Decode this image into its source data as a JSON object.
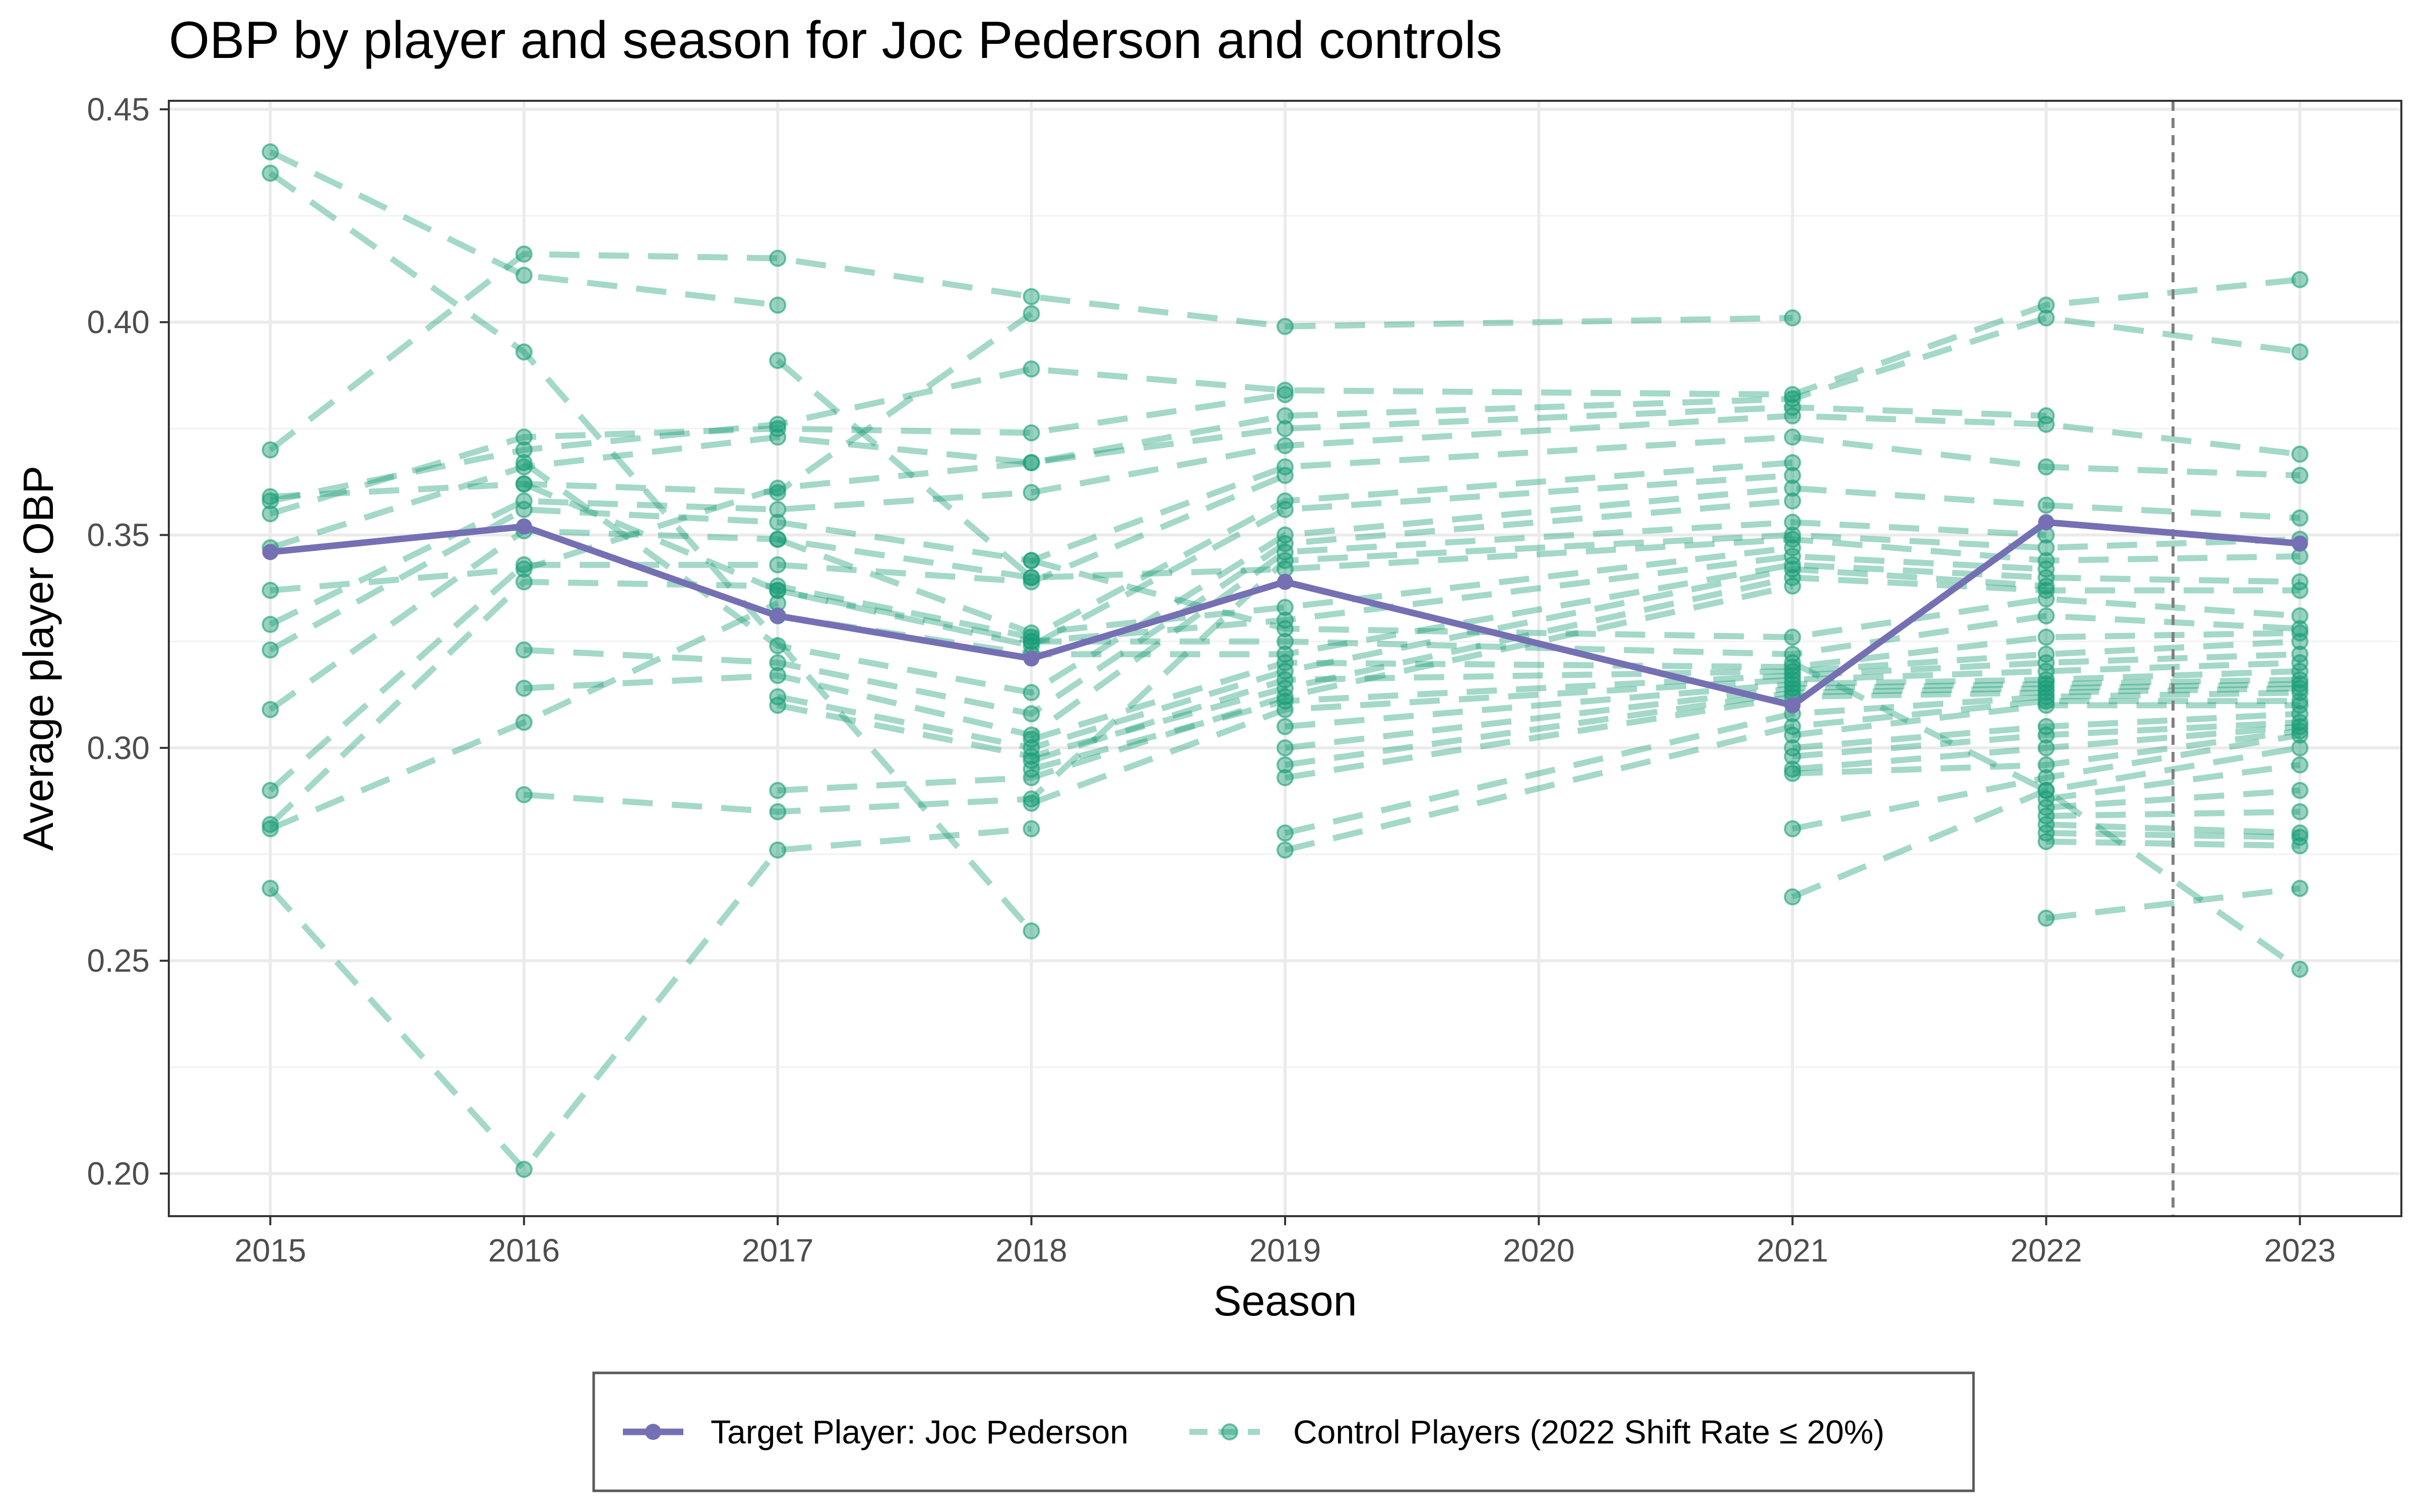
{
  "chart_data": {
    "type": "line",
    "title": "OBP by player and season for Joc Pederson and controls",
    "xlabel": "Season",
    "ylabel": "Average player OBP",
    "xlim": [
      2014.6,
      2023.4
    ],
    "ylim": [
      0.19,
      0.452
    ],
    "x_ticks": [
      "2015",
      "2016",
      "2017",
      "2018",
      "2019",
      "2020",
      "2021",
      "2022",
      "2023"
    ],
    "y_ticks": [
      "0.20",
      "0.25",
      "0.30",
      "0.35",
      "0.40",
      "0.45"
    ],
    "grid": true,
    "reference_line_x": 2022.5,
    "legend_position": "bottom",
    "colors": {
      "target": "#7570b3",
      "control": "#1b9e77",
      "reference": "#7f7f7f"
    },
    "target_series": {
      "name": "Target Player: Joc Pederson",
      "x": [
        2015,
        2016,
        2017,
        2018,
        2019,
        2021,
        2022,
        2023
      ],
      "y": [
        0.346,
        0.352,
        0.331,
        0.321,
        0.339,
        0.31,
        0.353,
        0.348
      ]
    },
    "control_legend": "Control Players (2022 Shift Rate ≤ 20%)",
    "control_series": [
      {
        "x": [
          2015,
          2016,
          2017
        ],
        "y": [
          0.44,
          0.411,
          0.404
        ]
      },
      {
        "x": [
          2015,
          2016,
          2018
        ],
        "y": [
          0.435,
          0.393,
          0.257
        ]
      },
      {
        "x": [
          2015,
          2016,
          2017,
          2018,
          2019,
          2021
        ],
        "y": [
          0.37,
          0.416,
          0.415,
          0.406,
          0.399,
          0.401
        ]
      },
      {
        "x": [
          2015,
          2016,
          2017,
          2018
        ],
        "y": [
          0.359,
          0.362,
          0.36,
          0.402
        ]
      },
      {
        "x": [
          2015,
          2016,
          2017,
          2018,
          2019,
          2021,
          2022,
          2023
        ],
        "y": [
          0.358,
          0.37,
          0.376,
          0.389,
          0.384,
          0.383,
          0.404,
          0.41
        ]
      },
      {
        "x": [
          2015,
          2016,
          2017,
          2018,
          2019
        ],
        "y": [
          0.355,
          0.373,
          0.375,
          0.374,
          0.383
        ]
      },
      {
        "x": [
          2015,
          2016,
          2017,
          2018,
          2019,
          2021,
          2022,
          2023
        ],
        "y": [
          0.347,
          0.366,
          0.373,
          0.367,
          0.378,
          0.382,
          0.401,
          0.393
        ]
      },
      {
        "x": [
          2015,
          2016,
          2017,
          2018,
          2019,
          2021,
          2022
        ],
        "y": [
          0.337,
          0.342,
          0.361,
          0.367,
          0.375,
          0.38,
          0.378
        ]
      },
      {
        "x": [
          2015,
          2016,
          2017,
          2018,
          2019,
          2021,
          2022,
          2023
        ],
        "y": [
          0.329,
          0.358,
          0.356,
          0.36,
          0.371,
          0.378,
          0.376,
          0.369
        ]
      },
      {
        "x": [
          2015,
          2016,
          2017,
          2018,
          2019,
          2021,
          2022,
          2023
        ],
        "y": [
          0.323,
          0.356,
          0.353,
          0.344,
          0.366,
          0.373,
          0.366,
          0.364
        ]
      },
      {
        "x": [
          2015,
          2016,
          2017,
          2018
        ],
        "y": [
          0.309,
          0.351,
          0.349,
          0.34
        ]
      },
      {
        "x": [
          2015,
          2016,
          2017,
          2018,
          2019
        ],
        "y": [
          0.29,
          0.343,
          0.343,
          0.339,
          0.364
        ]
      },
      {
        "x": [
          2015,
          2016,
          2017,
          2018,
          2019,
          2021
        ],
        "y": [
          0.282,
          0.339,
          0.338,
          0.326,
          0.358,
          0.367
        ]
      },
      {
        "x": [
          2015,
          2016,
          2017
        ],
        "y": [
          0.281,
          0.306,
          0.334
        ]
      },
      {
        "x": [
          2015,
          2016,
          2017,
          2018
        ],
        "y": [
          0.267,
          0.201,
          0.276,
          0.281
        ]
      },
      {
        "x": [
          2016,
          2017,
          2018,
          2019,
          2021
        ],
        "y": [
          0.362,
          0.337,
          0.324,
          0.356,
          0.364
        ]
      },
      {
        "x": [
          2016,
          2017,
          2018,
          2019,
          2021,
          2022,
          2023
        ],
        "y": [
          0.367,
          0.324,
          0.313,
          0.35,
          0.361,
          0.357,
          0.354
        ]
      },
      {
        "x": [
          2016,
          2017,
          2018,
          2019,
          2021
        ],
        "y": [
          0.323,
          0.32,
          0.308,
          0.348,
          0.358
        ]
      },
      {
        "x": [
          2016,
          2017,
          2018,
          2019,
          2021,
          2022
        ],
        "y": [
          0.314,
          0.317,
          0.303,
          0.346,
          0.353,
          0.35
        ]
      },
      {
        "x": [
          2016,
          2017,
          2018,
          2019,
          2021,
          2022,
          2023
        ],
        "y": [
          0.289,
          0.285,
          0.288,
          0.344,
          0.35,
          0.347,
          0.349
        ]
      },
      {
        "x": [
          2017,
          2018,
          2019,
          2021,
          2022,
          2023
        ],
        "y": [
          0.391,
          0.34,
          0.342,
          0.349,
          0.344,
          0.345
        ]
      },
      {
        "x": [
          2017,
          2018,
          2019,
          2021
        ],
        "y": [
          0.349,
          0.327,
          0.333,
          0.347
        ]
      },
      {
        "x": [
          2017,
          2018,
          2019,
          2021,
          2022
        ],
        "y": [
          0.337,
          0.325,
          0.33,
          0.345,
          0.342
        ]
      },
      {
        "x": [
          2017,
          2018,
          2019,
          2021,
          2022,
          2023
        ],
        "y": [
          0.331,
          0.322,
          0.322,
          0.343,
          0.34,
          0.339
        ]
      },
      {
        "x": [
          2017,
          2018,
          2019,
          2021,
          2022
        ],
        "y": [
          0.312,
          0.3,
          0.318,
          0.342,
          0.338
        ]
      },
      {
        "x": [
          2017,
          2018,
          2019,
          2021,
          2022,
          2023
        ],
        "y": [
          0.31,
          0.298,
          0.314,
          0.34,
          0.337,
          0.337
        ]
      },
      {
        "x": [
          2017,
          2018,
          2019,
          2021
        ],
        "y": [
          0.29,
          0.293,
          0.312,
          0.338
        ]
      },
      {
        "x": [
          2018,
          2019,
          2021,
          2022,
          2023
        ],
        "y": [
          0.344,
          0.328,
          0.326,
          0.335,
          0.331
        ]
      },
      {
        "x": [
          2018,
          2019,
          2021,
          2022,
          2023
        ],
        "y": [
          0.325,
          0.325,
          0.322,
          0.331,
          0.328
        ]
      },
      {
        "x": [
          2018,
          2019,
          2021,
          2022,
          2023
        ],
        "y": [
          0.302,
          0.32,
          0.319,
          0.326,
          0.327
        ]
      },
      {
        "x": [
          2018,
          2019,
          2021,
          2022,
          2023
        ],
        "y": [
          0.297,
          0.316,
          0.318,
          0.322,
          0.325
        ]
      },
      {
        "x": [
          2018,
          2019,
          2021,
          2022,
          2023
        ],
        "y": [
          0.295,
          0.311,
          0.317,
          0.32,
          0.322
        ]
      },
      {
        "x": [
          2018,
          2019,
          2021,
          2022,
          2023
        ],
        "y": [
          0.287,
          0.309,
          0.316,
          0.318,
          0.32
        ]
      },
      {
        "x": [
          2019,
          2021,
          2022,
          2023
        ],
        "y": [
          0.305,
          0.315,
          0.316,
          0.318
        ]
      },
      {
        "x": [
          2019,
          2021,
          2022,
          2023
        ],
        "y": [
          0.3,
          0.314,
          0.315,
          0.316
        ]
      },
      {
        "x": [
          2019,
          2021,
          2022,
          2023
        ],
        "y": [
          0.296,
          0.313,
          0.314,
          0.315
        ]
      },
      {
        "x": [
          2019,
          2021,
          2022,
          2023
        ],
        "y": [
          0.293,
          0.312,
          0.313,
          0.314
        ]
      },
      {
        "x": [
          2019,
          2021,
          2022,
          2023
        ],
        "y": [
          0.28,
          0.308,
          0.312,
          0.313
        ]
      },
      {
        "x": [
          2019,
          2021,
          2022,
          2023
        ],
        "y": [
          0.276,
          0.305,
          0.311,
          0.311
        ]
      },
      {
        "x": [
          2021,
          2022,
          2023
        ],
        "y": [
          0.303,
          0.31,
          0.31
        ]
      },
      {
        "x": [
          2021,
          2022,
          2023
        ],
        "y": [
          0.3,
          0.305,
          0.308
        ]
      },
      {
        "x": [
          2021,
          2022,
          2023
        ],
        "y": [
          0.298,
          0.303,
          0.306
        ]
      },
      {
        "x": [
          2021,
          2022,
          2023
        ],
        "y": [
          0.295,
          0.3,
          0.305
        ]
      },
      {
        "x": [
          2021,
          2022,
          2023
        ],
        "y": [
          0.294,
          0.296,
          0.304
        ]
      },
      {
        "x": [
          2021,
          2022,
          2023
        ],
        "y": [
          0.281,
          0.293,
          0.303
        ]
      },
      {
        "x": [
          2021,
          2022,
          2023
        ],
        "y": [
          0.265,
          0.29,
          0.3
        ]
      },
      {
        "x": [
          2022,
          2023
        ],
        "y": [
          0.288,
          0.296
        ]
      },
      {
        "x": [
          2022,
          2023
        ],
        "y": [
          0.286,
          0.29
        ]
      },
      {
        "x": [
          2022,
          2023
        ],
        "y": [
          0.284,
          0.285
        ]
      },
      {
        "x": [
          2022,
          2023
        ],
        "y": [
          0.282,
          0.28
        ]
      },
      {
        "x": [
          2022,
          2023
        ],
        "y": [
          0.28,
          0.279
        ]
      },
      {
        "x": [
          2022,
          2023
        ],
        "y": [
          0.278,
          0.277
        ]
      },
      {
        "x": [
          2022,
          2023
        ],
        "y": [
          0.26,
          0.267
        ]
      },
      {
        "x": [
          2021,
          2022,
          2023
        ],
        "y": [
          0.32,
          0.29,
          0.248
        ]
      }
    ]
  }
}
